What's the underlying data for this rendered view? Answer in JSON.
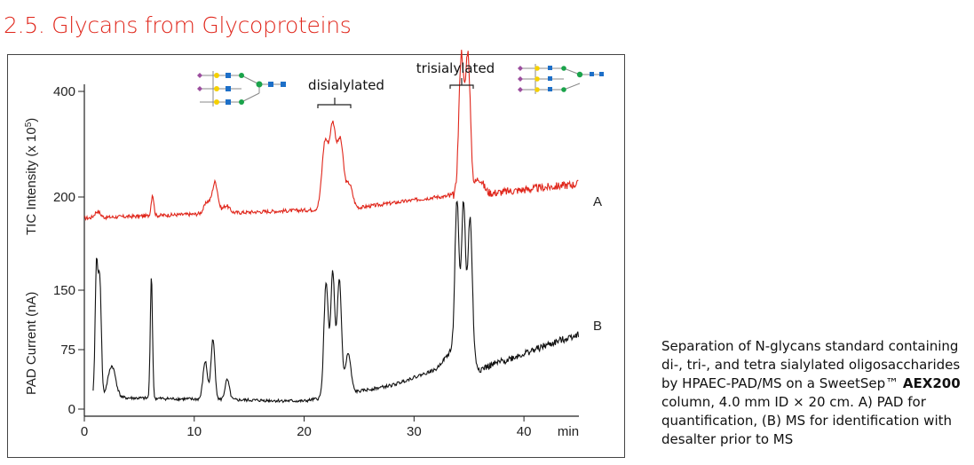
{
  "section_title": "2.5. Glycans from Glycoproteins",
  "caption": {
    "part1": "Separation of N-glycans standard containing di-, tri-, and tetra sialylated oligosaccharides by HPAEC-PAD/MS on a SweetSep™ ",
    "bold": "AEX200",
    "part2": " column, 4.0 mm ID × 20 cm. A) PAD for quantification, (B) MS for identification with desalter prior to MS"
  },
  "colors": {
    "trace_A": "#e0261b",
    "trace_B": "#111111",
    "title": "#e0261b"
  },
  "chart_data": {
    "type": "line",
    "xlabel": "min",
    "x_ticks": [
      0,
      10,
      20,
      30,
      40
    ],
    "xlim": [
      0,
      45
    ],
    "y_axes": [
      {
        "label": "TIC Intensity (x 10",
        "label_sup": "5",
        "label_end": ")",
        "ticks": [
          200,
          400
        ]
      },
      {
        "label": "PAD Current (nA)",
        "ticks": [
          0,
          75,
          150
        ]
      }
    ],
    "annotations": {
      "disialylated": "disialylated",
      "trisialylated": "trisialylated"
    },
    "series": [
      {
        "name": "A",
        "baseline": 160,
        "peaks": [
          [
            1.2,
            12,
            0.25
          ],
          [
            6.2,
            40,
            0.12
          ],
          [
            11.2,
            22,
            0.3
          ],
          [
            11.9,
            58,
            0.25
          ],
          [
            12.9,
            14,
            0.3
          ],
          [
            21.9,
            125,
            0.28
          ],
          [
            22.6,
            155,
            0.28
          ],
          [
            23.3,
            125,
            0.28
          ],
          [
            24.1,
            45,
            0.3
          ],
          [
            34.3,
            265,
            0.22
          ],
          [
            34.9,
            265,
            0.22
          ],
          [
            35.9,
            30,
            0.4
          ]
        ],
        "drift": [
          [
            0,
            0
          ],
          [
            20,
            15
          ],
          [
            25,
            20
          ],
          [
            32,
            40
          ],
          [
            36,
            45
          ],
          [
            45,
            65
          ]
        ]
      },
      {
        "name": "B",
        "baseline": 5,
        "peaks": [
          [
            1.1,
            160,
            0.12
          ],
          [
            1.4,
            150,
            0.14
          ],
          [
            2.5,
            40,
            0.35
          ],
          [
            6.1,
            155,
            0.1
          ],
          [
            11.0,
            48,
            0.2
          ],
          [
            11.7,
            75,
            0.18
          ],
          [
            13.0,
            25,
            0.2
          ],
          [
            22.0,
            145,
            0.2
          ],
          [
            22.6,
            155,
            0.18
          ],
          [
            23.2,
            145,
            0.2
          ],
          [
            24.0,
            50,
            0.25
          ],
          [
            33.9,
            180,
            0.18
          ],
          [
            34.5,
            185,
            0.18
          ],
          [
            35.1,
            175,
            0.2
          ]
        ],
        "drift": [
          [
            0,
            10
          ],
          [
            20,
            5
          ],
          [
            28,
            25
          ],
          [
            32,
            45
          ],
          [
            34,
            80
          ],
          [
            36,
            45
          ],
          [
            45,
            90
          ]
        ]
      }
    ]
  }
}
